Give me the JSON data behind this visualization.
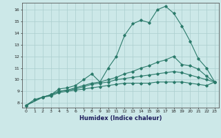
{
  "title": "",
  "xlabel": "Humidex (Indice chaleur)",
  "ylabel": "",
  "bg_color": "#cce8e8",
  "line_color": "#2a7a6a",
  "xlim": [
    -0.5,
    23.5
  ],
  "ylim": [
    7.6,
    16.6
  ],
  "xticks": [
    0,
    1,
    2,
    3,
    4,
    5,
    6,
    7,
    8,
    9,
    10,
    11,
    12,
    13,
    14,
    15,
    16,
    17,
    18,
    19,
    20,
    21,
    22,
    23
  ],
  "yticks": [
    8,
    9,
    10,
    11,
    12,
    13,
    14,
    15,
    16
  ],
  "grid_color": "#aacece",
  "lines": [
    {
      "x": [
        0,
        1,
        2,
        3,
        4,
        5,
        6,
        7,
        8,
        9,
        10,
        11,
        12,
        13,
        14,
        15,
        16,
        17,
        18,
        19,
        20,
        21,
        22,
        23
      ],
      "y": [
        7.8,
        8.3,
        8.5,
        8.7,
        9.2,
        9.3,
        9.5,
        10.0,
        10.5,
        9.8,
        11.0,
        12.0,
        13.8,
        14.8,
        15.1,
        14.9,
        16.0,
        16.3,
        15.7,
        14.6,
        13.3,
        11.8,
        11.0,
        9.8
      ]
    },
    {
      "x": [
        0,
        2,
        3,
        4,
        5,
        6,
        7,
        8,
        9,
        10,
        11,
        12,
        13,
        14,
        15,
        16,
        17,
        18,
        19,
        20,
        21,
        22,
        23
      ],
      "y": [
        7.8,
        8.5,
        8.7,
        9.0,
        9.1,
        9.3,
        9.5,
        9.7,
        9.8,
        10.0,
        10.2,
        10.5,
        10.7,
        11.0,
        11.2,
        11.5,
        11.7,
        12.0,
        11.3,
        11.2,
        10.9,
        10.3,
        9.8
      ]
    },
    {
      "x": [
        0,
        2,
        3,
        4,
        5,
        6,
        7,
        8,
        9,
        10,
        11,
        12,
        13,
        14,
        15,
        16,
        17,
        18,
        19,
        20,
        21,
        22,
        23
      ],
      "y": [
        7.8,
        8.5,
        8.7,
        9.0,
        9.1,
        9.2,
        9.4,
        9.6,
        9.7,
        9.8,
        10.0,
        10.1,
        10.2,
        10.3,
        10.4,
        10.5,
        10.6,
        10.7,
        10.6,
        10.4,
        10.2,
        10.0,
        9.8
      ]
    },
    {
      "x": [
        0,
        2,
        3,
        4,
        5,
        6,
        7,
        8,
        9,
        10,
        11,
        12,
        13,
        14,
        15,
        16,
        17,
        18,
        19,
        20,
        21,
        22,
        23
      ],
      "y": [
        7.8,
        8.5,
        8.6,
        8.9,
        9.0,
        9.1,
        9.2,
        9.3,
        9.4,
        9.5,
        9.6,
        9.7,
        9.7,
        9.7,
        9.7,
        9.8,
        9.8,
        9.8,
        9.8,
        9.7,
        9.6,
        9.5,
        9.8
      ]
    }
  ]
}
